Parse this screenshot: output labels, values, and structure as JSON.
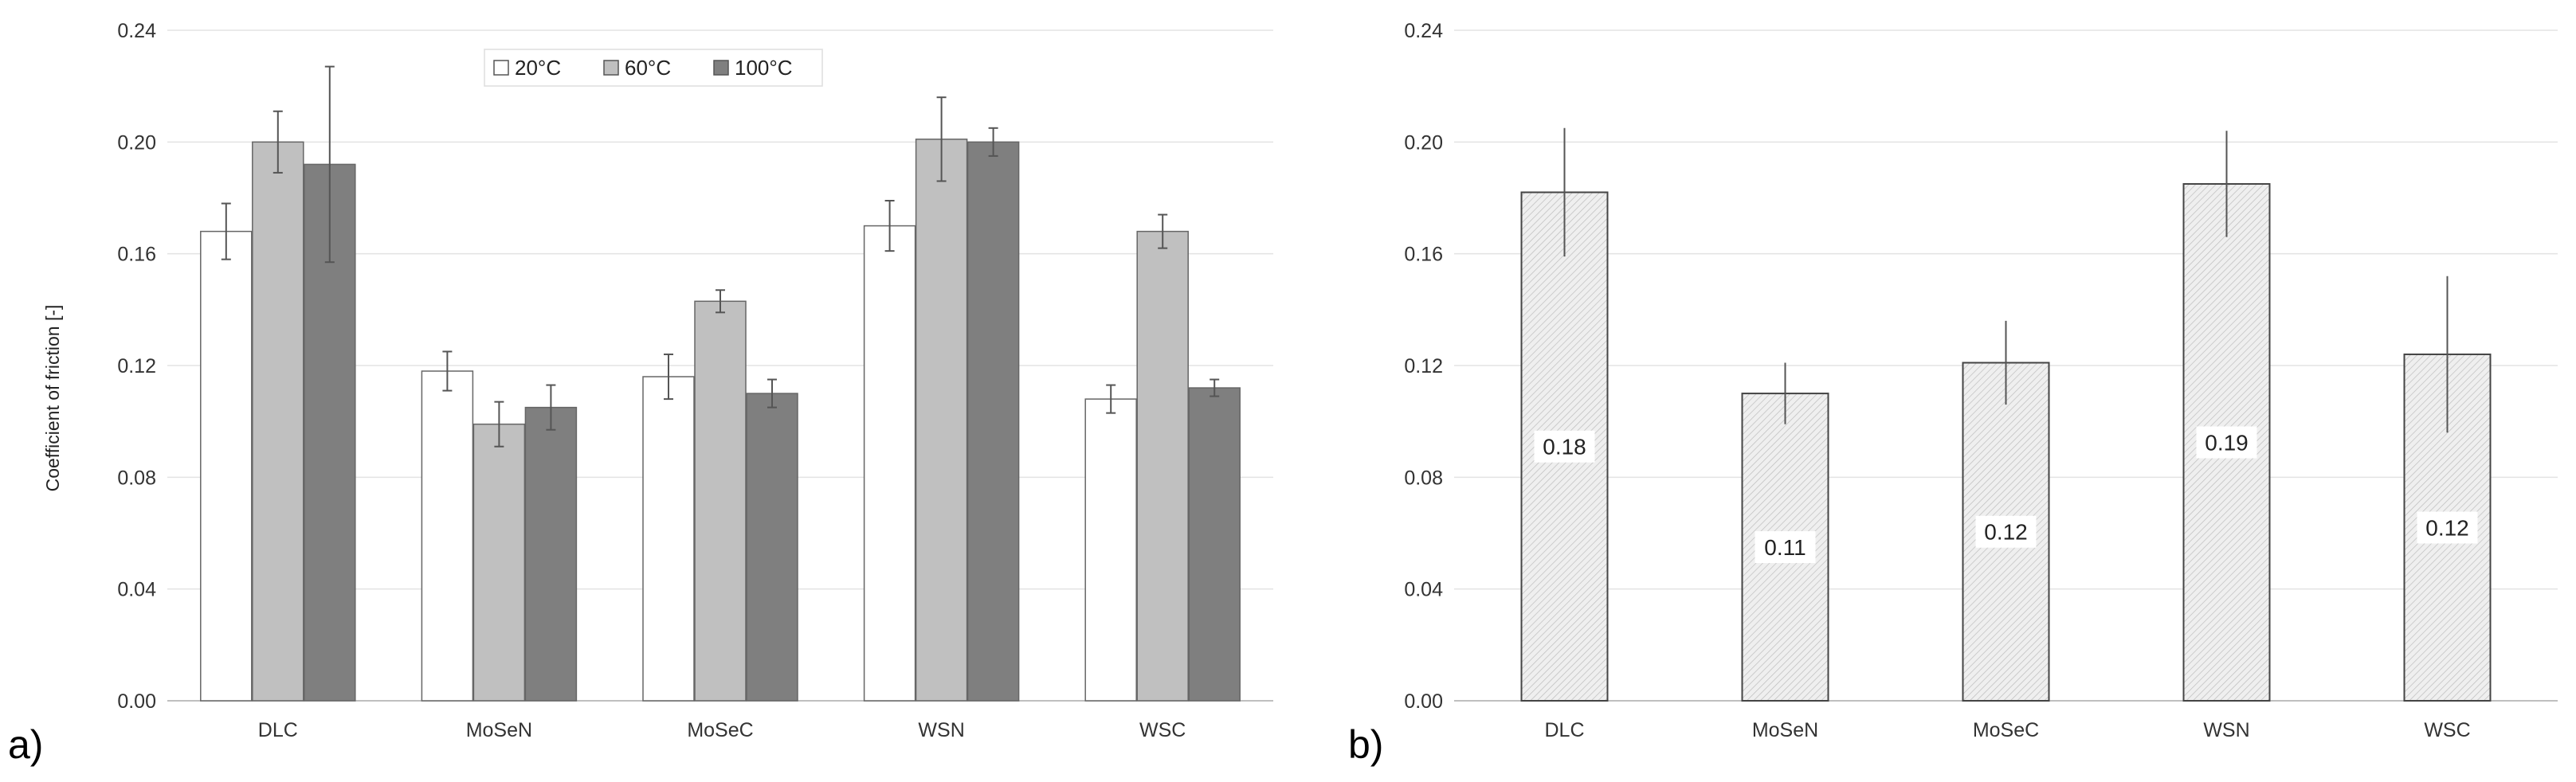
{
  "chart_data": [
    {
      "type": "bar",
      "panel_label": "a)",
      "ylabel": "Coefficient of friction [-]",
      "ylim": [
        0,
        0.24
      ],
      "yticks": [
        "0.00",
        "0.04",
        "0.08",
        "0.12",
        "0.16",
        "0.20",
        "0.24"
      ],
      "grid": true,
      "legend_position": "top-center",
      "categories": [
        "DLC",
        "MoSeN",
        "MoSeC",
        "WSN",
        "WSC"
      ],
      "series": [
        {
          "name": "20°C",
          "color": "#ffffff",
          "values": [
            0.168,
            0.118,
            0.116,
            0.17,
            0.108
          ],
          "errors": [
            0.01,
            0.007,
            0.008,
            0.009,
            0.005
          ]
        },
        {
          "name": "60°C",
          "color": "#c0c0c0",
          "values": [
            0.2,
            0.099,
            0.143,
            0.201,
            0.168
          ],
          "errors": [
            0.011,
            0.008,
            0.004,
            0.015,
            0.006
          ]
        },
        {
          "name": "100°C",
          "color": "#7f7f7f",
          "values": [
            0.192,
            0.105,
            0.11,
            0.2,
            0.112
          ],
          "errors": [
            0.035,
            0.008,
            0.005,
            0.005,
            0.003
          ]
        }
      ]
    },
    {
      "type": "bar",
      "panel_label": "b)",
      "ylim": [
        0,
        0.24
      ],
      "yticks": [
        "0.00",
        "0.04",
        "0.08",
        "0.12",
        "0.16",
        "0.20",
        "0.24"
      ],
      "grid": true,
      "categories": [
        "DLC",
        "MoSeN",
        "MoSeC",
        "WSN",
        "WSC"
      ],
      "values": [
        0.182,
        0.11,
        0.121,
        0.185,
        0.124
      ],
      "errors": [
        0.023,
        0.011,
        0.015,
        0.019,
        0.028
      ],
      "data_labels": [
        "0.18",
        "0.11",
        "0.12",
        "0.19",
        "0.12"
      ],
      "color": "#efefef"
    }
  ]
}
